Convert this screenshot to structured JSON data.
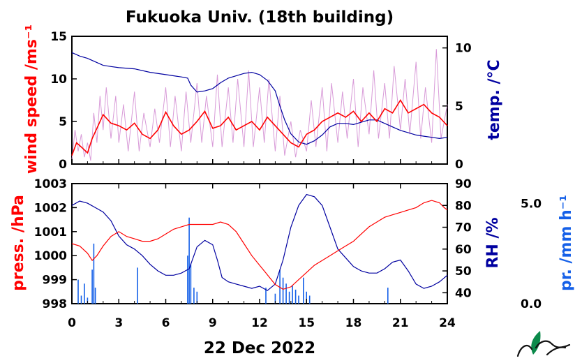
{
  "title": "Fukuoka Univ. (18th building)",
  "date_label": "22 Dec 2022",
  "colors": {
    "wind": "#ff0000",
    "wind_raw": "#d89ad8",
    "temp": "#0000a0",
    "pressure": "#ff0000",
    "rh": "#0000a0",
    "precip": "#1560e8"
  },
  "chart_data": [
    {
      "type": "line",
      "panel": "top",
      "xlim": [
        0,
        24
      ],
      "xticks": [
        "0",
        "3",
        "6",
        "9",
        "12",
        "15",
        "18",
        "21",
        "24"
      ],
      "y_left": {
        "label": "wind speed /ms⁻¹",
        "lim": [
          0,
          15
        ],
        "ticks": [
          "0",
          "5",
          "10",
          "15"
        ]
      },
      "y_right": {
        "label": "temp. /°C",
        "lim": [
          0,
          11
        ],
        "ticks": [
          "0",
          "5",
          "10"
        ]
      },
      "series": [
        {
          "key": "wind_mean",
          "axis": "left",
          "x": [
            0,
            0.3,
            0.6,
            1.0,
            1.3,
            1.7,
            2.0,
            2.5,
            3.0,
            3.5,
            4.0,
            4.5,
            5.0,
            5.5,
            6.0,
            6.5,
            7.0,
            7.5,
            8.0,
            8.5,
            9.0,
            9.5,
            10.0,
            10.5,
            11.0,
            11.5,
            12.0,
            12.5,
            13.0,
            13.5,
            14.0,
            14.5,
            15.0,
            15.5,
            16.0,
            16.5,
            17.0,
            17.5,
            18.0,
            18.5,
            19.0,
            19.5,
            20.0,
            20.5,
            21.0,
            21.5,
            22.0,
            22.5,
            23.0,
            23.5,
            24.0
          ],
          "y": [
            1.0,
            2.5,
            2.0,
            1.3,
            3.0,
            4.6,
            5.8,
            4.8,
            4.5,
            4.0,
            4.8,
            3.5,
            3.0,
            4.0,
            6.1,
            4.5,
            3.5,
            4.0,
            5.0,
            6.2,
            4.2,
            4.5,
            5.5,
            4.0,
            4.5,
            5.0,
            4.0,
            5.5,
            4.5,
            3.5,
            2.5,
            2.0,
            3.5,
            4.0,
            5.0,
            5.5,
            6.0,
            5.5,
            6.2,
            5.0,
            6.0,
            5.0,
            6.5,
            6.0,
            7.5,
            6.0,
            6.5,
            7.0,
            6.0,
            5.5,
            4.5
          ]
        },
        {
          "key": "wind_raw",
          "axis": "left",
          "x": [
            0,
            0.2,
            0.4,
            0.6,
            0.8,
            1.0,
            1.2,
            1.4,
            1.6,
            1.8,
            2.0,
            2.2,
            2.5,
            2.8,
            3.0,
            3.3,
            3.6,
            4.0,
            4.3,
            4.6,
            5.0,
            5.3,
            5.6,
            6.0,
            6.3,
            6.6,
            7.0,
            7.3,
            7.6,
            8.0,
            8.3,
            8.6,
            9.0,
            9.3,
            9.6,
            10.0,
            10.3,
            10.6,
            11.0,
            11.3,
            11.6,
            12.0,
            12.3,
            12.6,
            13.0,
            13.3,
            13.6,
            14.0,
            14.3,
            14.6,
            15.0,
            15.3,
            15.6,
            16.0,
            16.3,
            16.6,
            17.0,
            17.3,
            17.6,
            18.0,
            18.3,
            18.6,
            19.0,
            19.3,
            19.6,
            20.0,
            20.3,
            20.6,
            21.0,
            21.3,
            21.6,
            22.0,
            22.3,
            22.6,
            23.0,
            23.3,
            23.6,
            24.0
          ],
          "y": [
            0.5,
            4.0,
            1.5,
            3.5,
            0.8,
            2.5,
            0.4,
            6.0,
            2.5,
            8.0,
            4.0,
            9.0,
            3.0,
            8.0,
            2.5,
            7.0,
            1.5,
            8.5,
            1.5,
            6.0,
            2.0,
            6.5,
            2.5,
            9.0,
            2.0,
            8.0,
            1.5,
            8.5,
            2.5,
            9.5,
            2.5,
            8.0,
            2.0,
            10.5,
            2.0,
            9.0,
            2.5,
            10.0,
            2.0,
            11.0,
            2.0,
            9.0,
            2.5,
            10.0,
            1.5,
            8.0,
            1.0,
            5.0,
            0.8,
            4.0,
            1.5,
            7.5,
            2.0,
            9.0,
            1.5,
            9.5,
            2.5,
            8.5,
            3.0,
            10.0,
            2.0,
            9.0,
            3.5,
            11.0,
            3.0,
            9.5,
            3.0,
            11.5,
            4.0,
            10.0,
            3.5,
            12.0,
            3.0,
            9.0,
            2.5,
            13.5,
            3.0,
            7.0
          ]
        },
        {
          "key": "temperature",
          "axis": "right",
          "x": [
            0,
            0.5,
            1.0,
            1.5,
            2.0,
            2.5,
            3.0,
            4.0,
            5.0,
            6.0,
            7.0,
            7.4,
            7.6,
            8.0,
            8.5,
            9.0,
            9.5,
            10.0,
            10.5,
            11.0,
            11.5,
            12.0,
            12.5,
            13.0,
            13.3,
            13.6,
            14.0,
            14.5,
            15.0,
            15.5,
            16.0,
            16.5,
            17.0,
            17.5,
            18.0,
            18.5,
            19.0,
            19.5,
            20.0,
            20.5,
            21.0,
            21.5,
            22.0,
            22.5,
            23.0,
            23.5,
            24.0
          ],
          "y": [
            9.6,
            9.3,
            9.1,
            8.8,
            8.5,
            8.4,
            8.3,
            8.2,
            7.9,
            7.7,
            7.5,
            7.4,
            6.8,
            6.2,
            6.3,
            6.5,
            7.0,
            7.4,
            7.6,
            7.8,
            7.9,
            7.7,
            7.2,
            6.3,
            5.0,
            3.8,
            2.6,
            1.9,
            1.7,
            2.0,
            2.5,
            3.2,
            3.5,
            3.5,
            3.4,
            3.6,
            3.8,
            3.8,
            3.5,
            3.2,
            2.9,
            2.7,
            2.5,
            2.4,
            2.3,
            2.2,
            2.3
          ]
        }
      ]
    },
    {
      "type": "line",
      "panel": "bottom",
      "xlim": [
        0,
        24
      ],
      "xlabel": "22 Dec 2022",
      "xticks": [
        "0",
        "3",
        "6",
        "9",
        "12",
        "15",
        "18",
        "21",
        "24"
      ],
      "y_left": {
        "label": "press. /hPa",
        "lim": [
          998,
          1003
        ],
        "ticks": [
          "998",
          "999",
          "1000",
          "1001",
          "1002",
          "1003"
        ]
      },
      "y_right": {
        "label": "RH /%",
        "lim": [
          35,
          90
        ],
        "ticks": [
          "40",
          "50",
          "60",
          "70",
          "80",
          "90"
        ]
      },
      "y_far_right": {
        "label": "pr. /mm h⁻¹",
        "lim": [
          0,
          6
        ],
        "ticks": [
          "0.0",
          "5.0"
        ]
      },
      "series": [
        {
          "key": "pressure",
          "axis": "left",
          "x": [
            0,
            0.5,
            1.0,
            1.3,
            1.6,
            2.0,
            2.5,
            3.0,
            3.5,
            4.0,
            4.5,
            5.0,
            5.5,
            6.0,
            6.5,
            7.0,
            7.5,
            8.0,
            8.5,
            9.0,
            9.5,
            10.0,
            10.5,
            11.0,
            11.5,
            12.0,
            12.5,
            13.0,
            13.5,
            14.0,
            14.5,
            15.0,
            15.5,
            16.0,
            16.5,
            17.0,
            17.5,
            18.0,
            18.5,
            19.0,
            19.5,
            20.0,
            20.5,
            21.0,
            21.5,
            22.0,
            22.5,
            23.0,
            23.5,
            23.8,
            24.0
          ],
          "y": [
            1000.5,
            1000.4,
            1000.1,
            999.8,
            1000.0,
            1000.4,
            1000.8,
            1001.0,
            1000.8,
            1000.7,
            1000.6,
            1000.6,
            1000.7,
            1000.9,
            1001.1,
            1001.2,
            1001.3,
            1001.3,
            1001.3,
            1001.3,
            1001.4,
            1001.3,
            1001.0,
            1000.5,
            1000.0,
            999.6,
            999.2,
            998.8,
            998.6,
            998.7,
            999.0,
            999.3,
            999.6,
            999.8,
            1000.0,
            1000.2,
            1000.4,
            1000.6,
            1000.9,
            1001.2,
            1001.4,
            1001.6,
            1001.7,
            1001.8,
            1001.9,
            1002.0,
            1002.2,
            1002.3,
            1002.2,
            1002.0,
            1001.9
          ]
        },
        {
          "key": "relative_humidity",
          "axis": "right",
          "x": [
            0,
            0.5,
            1.0,
            1.5,
            2.0,
            2.5,
            3.0,
            3.5,
            4.0,
            4.5,
            5.0,
            5.5,
            6.0,
            6.5,
            7.0,
            7.5,
            8.0,
            8.5,
            9.0,
            9.3,
            9.6,
            10.0,
            10.5,
            11.0,
            11.5,
            12.0,
            12.5,
            13.0,
            13.5,
            14.0,
            14.5,
            15.0,
            15.5,
            16.0,
            16.5,
            17.0,
            17.5,
            18.0,
            18.5,
            19.0,
            19.5,
            20.0,
            20.5,
            21.0,
            21.5,
            22.0,
            22.5,
            23.0,
            23.5,
            24.0
          ],
          "y": [
            80,
            82,
            81,
            79,
            77,
            73,
            66,
            62,
            60,
            57,
            53,
            50,
            48,
            48,
            49,
            51,
            61,
            64,
            62,
            55,
            47,
            45,
            44,
            43,
            42,
            43,
            41,
            44,
            55,
            70,
            80,
            85,
            84,
            80,
            70,
            60,
            56,
            52,
            50,
            49,
            49,
            51,
            54,
            55,
            50,
            44,
            42,
            43,
            45,
            48
          ]
        },
        {
          "key": "precipitation",
          "type": "bar",
          "axis": "far_right",
          "x": [
            0.4,
            0.6,
            0.8,
            1.0,
            1.3,
            1.4,
            1.5,
            4.2,
            7.4,
            7.5,
            7.6,
            7.8,
            8.0,
            12.4,
            13.0,
            13.3,
            13.5,
            13.7,
            13.9,
            14.1,
            14.3,
            14.5,
            14.8,
            15.0,
            15.2,
            20.2
          ],
          "y": [
            1.2,
            0.4,
            1.0,
            0.3,
            1.7,
            3.0,
            0.8,
            1.8,
            2.4,
            4.3,
            2.0,
            0.8,
            0.6,
            0.8,
            0.5,
            1.7,
            1.3,
            1.0,
            0.6,
            0.9,
            0.7,
            0.4,
            1.3,
            0.6,
            0.4,
            0.8
          ]
        }
      ]
    }
  ]
}
